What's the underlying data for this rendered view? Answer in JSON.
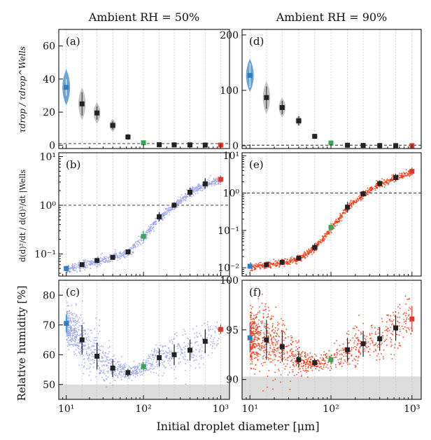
{
  "figure": {
    "column_titles": [
      "Ambient RH = 50%",
      "Ambient RH = 90%"
    ],
    "xlabel": "Initial droplet diameter [μm]",
    "ylabels": {
      "row1": "τdrop / τdrop^Wells",
      "row2": "d(d)²/dt / d(d)²/dt |Wells",
      "row3": "Relative humidity [%]"
    },
    "xtick_labels": [
      "10¹",
      "10²",
      "10³"
    ],
    "colors": {
      "blue_marker": "#2e7fc1",
      "green_marker": "#3aa655",
      "red_marker": "#d93a2b",
      "black_marker": "#222222",
      "scatter_50": "#9fa8f0",
      "scatter_90": "#ff3a14",
      "violin_grey": "#bdbdbd",
      "violin_blue": "#5b9bd0",
      "shade": "#dcdcdc",
      "grid": "#c8c8c8"
    }
  },
  "chart_data": [
    {
      "panel": "(a)",
      "type": "violin",
      "column": "Ambient RH = 50%",
      "x": [
        10,
        16,
        25,
        40,
        63,
        100,
        160,
        250,
        400,
        630,
        1000
      ],
      "y": [
        35,
        25,
        19.5,
        12,
        5,
        1.5,
        0.3,
        0.2,
        0.2,
        0.1,
        0.1
      ],
      "err": [
        5,
        7,
        4,
        2.5,
        1.5,
        0.5,
        0.2,
        0.1,
        0.1,
        0.1,
        0.1
      ],
      "spread": [
        11,
        10,
        6.5,
        4,
        2,
        0.6,
        0.2,
        0.1,
        0.1,
        0.1,
        0.1
      ],
      "xscale": "log",
      "xlim": [
        8,
        1300
      ],
      "ylim": [
        -2,
        70
      ],
      "yticks": [
        0,
        20,
        40,
        60
      ],
      "reference_line": 1
    },
    {
      "panel": "(d)",
      "type": "violin",
      "column": "Ambient RH = 90%",
      "x": [
        10,
        16,
        25,
        40,
        63,
        100,
        160,
        250,
        400,
        630,
        1000
      ],
      "y": [
        127,
        87,
        69,
        45,
        17,
        5,
        1,
        0.6,
        0.4,
        0.3,
        0.2
      ],
      "err": [
        22,
        20,
        12,
        8,
        4,
        1,
        0.5,
        0.3,
        0.2,
        0.2,
        0.2
      ],
      "spread": [
        30,
        30,
        18,
        10,
        5,
        1.5,
        0.5,
        0.3,
        0.2,
        0.2,
        0.2
      ],
      "xscale": "log",
      "xlim": [
        8,
        1300
      ],
      "ylim": [
        -5,
        210
      ],
      "yticks": [
        0,
        100,
        200
      ],
      "reference_line": 1
    },
    {
      "panel": "(b)",
      "type": "scatter",
      "column": "Ambient RH = 50%",
      "x": [
        10,
        16,
        25,
        40,
        63,
        100,
        160,
        250,
        400,
        630,
        1000
      ],
      "y": [
        0.05,
        0.06,
        0.073,
        0.085,
        0.11,
        0.23,
        0.58,
        1.0,
        1.85,
        2.75,
        3.4
      ],
      "err_low": [
        0.044,
        0.054,
        0.067,
        0.079,
        0.1,
        0.18,
        0.47,
        0.88,
        1.5,
        2.2,
        2.9
      ],
      "err_high": [
        0.056,
        0.066,
        0.079,
        0.091,
        0.12,
        0.3,
        0.72,
        1.15,
        2.3,
        3.6,
        4.0
      ],
      "yscale": "log",
      "xscale": "log",
      "xlim": [
        8,
        1300
      ],
      "ylim": [
        0.035,
        12
      ],
      "reference_line": 1,
      "ytick_labels": [
        "10⁻¹",
        "10⁰",
        "10¹"
      ]
    },
    {
      "panel": "(e)",
      "type": "scatter",
      "column": "Ambient RH = 90%",
      "x": [
        10,
        16,
        25,
        40,
        63,
        100,
        160,
        250,
        400,
        630,
        1000
      ],
      "y": [
        0.011,
        0.012,
        0.014,
        0.018,
        0.035,
        0.12,
        0.42,
        0.95,
        1.8,
        2.6,
        3.8
      ],
      "err_low": [
        0.0095,
        0.0105,
        0.0125,
        0.016,
        0.028,
        0.085,
        0.3,
        0.78,
        1.5,
        2.1,
        3.0
      ],
      "err_high": [
        0.0125,
        0.0135,
        0.0155,
        0.02,
        0.045,
        0.16,
        0.58,
        1.15,
        2.2,
        3.3,
        4.8
      ],
      "yscale": "log",
      "xscale": "log",
      "xlim": [
        8,
        1300
      ],
      "ylim": [
        0.006,
        12
      ],
      "reference_line": 1,
      "ytick_labels": [
        "10⁻²",
        "10⁻¹",
        "10⁰",
        "10¹"
      ]
    },
    {
      "panel": "(c)",
      "type": "scatter",
      "column": "Ambient RH = 50%",
      "x": [
        10,
        16,
        25,
        40,
        63,
        100,
        160,
        250,
        400,
        630,
        1000
      ],
      "y": [
        70.5,
        65,
        59.5,
        55.5,
        54,
        56,
        59,
        60,
        61.5,
        64.5,
        68.5
      ],
      "err": [
        3,
        5,
        4.5,
        3,
        1.3,
        1.5,
        3,
        3.5,
        3.5,
        4,
        1.5
      ],
      "xscale": "log",
      "xlim": [
        8,
        1300
      ],
      "ylim": [
        45,
        85
      ],
      "yticks": [
        50,
        60,
        70,
        80
      ],
      "shaded_below": 50
    },
    {
      "panel": "(f)",
      "type": "scatter",
      "column": "Ambient RH = 90%",
      "x": [
        10,
        16,
        25,
        40,
        63,
        100,
        160,
        250,
        400,
        630,
        1000
      ],
      "y": [
        94.2,
        94,
        93.3,
        92,
        91.7,
        92,
        93,
        93.6,
        94.1,
        95.2,
        96.1
      ],
      "err": [
        1.5,
        2,
        1.5,
        0.8,
        0.4,
        0.5,
        1.2,
        1.3,
        1.2,
        1.3,
        1.3
      ],
      "xscale": "log",
      "xlim": [
        8,
        1300
      ],
      "ylim": [
        88,
        100
      ],
      "yticks": [
        90,
        95,
        100
      ],
      "shaded_below": 90.3
    }
  ]
}
